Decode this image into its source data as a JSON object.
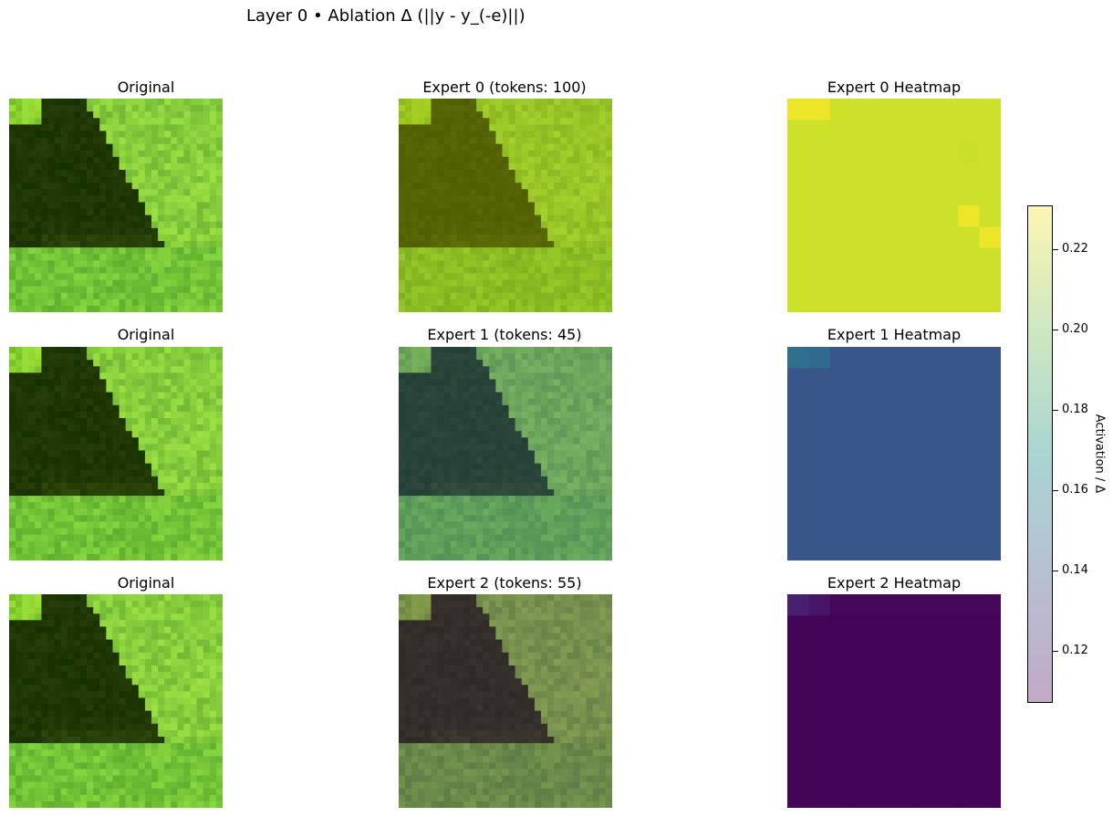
{
  "figure": {
    "title": "Layer 0 • Ablation Δ (||y - y_(-e)||)",
    "rows": [
      {
        "original_title": "Original",
        "expert_title": "Expert 0 (tokens: 100)",
        "heatmap_title": "Expert 0 Heatmap"
      },
      {
        "original_title": "Original",
        "expert_title": "Expert 1 (tokens: 45)",
        "heatmap_title": "Expert 1 Heatmap"
      },
      {
        "original_title": "Original",
        "expert_title": "Expert 2 (tokens: 55)",
        "heatmap_title": "Expert 2 Heatmap"
      }
    ],
    "tints": {
      "original": "#ffffff",
      "expert_0": "#b8b400",
      "expert_1": "#3a5b9a",
      "expert_2": "#5a1e6e"
    }
  },
  "chart_data": {
    "type": "heatmap",
    "title": "Layer 0 • Ablation Δ (||y - y_(-e)||)",
    "colorbar": {
      "label": "Activation / Δ",
      "ticks": [
        0.12,
        0.14,
        0.16,
        0.18,
        0.2,
        0.22
      ],
      "tick_labels": [
        "0.12",
        "0.14",
        "0.16",
        "0.18",
        "0.20",
        "0.22"
      ],
      "range": [
        0.107,
        0.231
      ],
      "colormap": "viridis (alpha 0.35)"
    },
    "heatmaps": [
      {
        "name": "Expert 0 Heatmap",
        "grid": [
          [
            0.228,
            0.228,
            0.222,
            0.222,
            0.222,
            0.222,
            0.222,
            0.222,
            0.222,
            0.222
          ],
          [
            0.222,
            0.222,
            0.222,
            0.222,
            0.222,
            0.222,
            0.222,
            0.222,
            0.222,
            0.222
          ],
          [
            0.222,
            0.222,
            0.222,
            0.222,
            0.222,
            0.222,
            0.222,
            0.222,
            0.221,
            0.222
          ],
          [
            0.222,
            0.222,
            0.222,
            0.222,
            0.222,
            0.222,
            0.222,
            0.222,
            0.222,
            0.222
          ],
          [
            0.222,
            0.222,
            0.222,
            0.222,
            0.222,
            0.222,
            0.222,
            0.222,
            0.222,
            0.222
          ],
          [
            0.222,
            0.222,
            0.222,
            0.222,
            0.222,
            0.222,
            0.222,
            0.222,
            0.228,
            0.222
          ],
          [
            0.222,
            0.222,
            0.222,
            0.222,
            0.222,
            0.222,
            0.222,
            0.222,
            0.222,
            0.228
          ],
          [
            0.222,
            0.222,
            0.222,
            0.222,
            0.222,
            0.222,
            0.222,
            0.222,
            0.222,
            0.222
          ],
          [
            0.222,
            0.222,
            0.222,
            0.222,
            0.222,
            0.222,
            0.222,
            0.222,
            0.222,
            0.222
          ],
          [
            0.222,
            0.222,
            0.222,
            0.222,
            0.222,
            0.222,
            0.222,
            0.222,
            0.222,
            0.222
          ]
        ]
      },
      {
        "name": "Expert 1 Heatmap",
        "grid": [
          [
            0.152,
            0.15,
            0.14,
            0.14,
            0.14,
            0.14,
            0.14,
            0.14,
            0.14,
            0.14
          ],
          [
            0.14,
            0.14,
            0.14,
            0.14,
            0.14,
            0.14,
            0.14,
            0.14,
            0.14,
            0.14
          ],
          [
            0.14,
            0.14,
            0.14,
            0.14,
            0.14,
            0.14,
            0.14,
            0.14,
            0.14,
            0.14
          ],
          [
            0.14,
            0.14,
            0.14,
            0.14,
            0.14,
            0.14,
            0.14,
            0.14,
            0.14,
            0.14
          ],
          [
            0.14,
            0.14,
            0.14,
            0.14,
            0.14,
            0.14,
            0.14,
            0.14,
            0.14,
            0.14
          ],
          [
            0.14,
            0.14,
            0.14,
            0.14,
            0.14,
            0.14,
            0.14,
            0.14,
            0.14,
            0.14
          ],
          [
            0.14,
            0.14,
            0.14,
            0.14,
            0.14,
            0.14,
            0.14,
            0.14,
            0.14,
            0.14
          ],
          [
            0.14,
            0.14,
            0.14,
            0.14,
            0.14,
            0.14,
            0.14,
            0.14,
            0.14,
            0.14
          ],
          [
            0.14,
            0.14,
            0.14,
            0.14,
            0.14,
            0.14,
            0.14,
            0.14,
            0.14,
            0.14
          ],
          [
            0.14,
            0.14,
            0.14,
            0.14,
            0.14,
            0.14,
            0.14,
            0.14,
            0.14,
            0.14
          ]
        ]
      },
      {
        "name": "Expert 2 Heatmap",
        "grid": [
          [
            0.118,
            0.114,
            0.109,
            0.109,
            0.109,
            0.109,
            0.109,
            0.109,
            0.109,
            0.109
          ],
          [
            0.108,
            0.108,
            0.108,
            0.108,
            0.108,
            0.108,
            0.108,
            0.108,
            0.108,
            0.108
          ],
          [
            0.108,
            0.108,
            0.108,
            0.108,
            0.108,
            0.108,
            0.108,
            0.108,
            0.108,
            0.108
          ],
          [
            0.108,
            0.108,
            0.108,
            0.108,
            0.108,
            0.108,
            0.108,
            0.108,
            0.108,
            0.108
          ],
          [
            0.108,
            0.108,
            0.108,
            0.108,
            0.108,
            0.108,
            0.108,
            0.108,
            0.108,
            0.108
          ],
          [
            0.108,
            0.108,
            0.108,
            0.108,
            0.108,
            0.108,
            0.108,
            0.108,
            0.108,
            0.108
          ],
          [
            0.108,
            0.108,
            0.108,
            0.108,
            0.108,
            0.108,
            0.108,
            0.108,
            0.108,
            0.108
          ],
          [
            0.108,
            0.108,
            0.108,
            0.108,
            0.108,
            0.108,
            0.108,
            0.108,
            0.108,
            0.108
          ],
          [
            0.108,
            0.108,
            0.108,
            0.108,
            0.108,
            0.108,
            0.108,
            0.108,
            0.108,
            0.108
          ],
          [
            0.108,
            0.108,
            0.108,
            0.108,
            0.108,
            0.108,
            0.108,
            0.108,
            0.108,
            0.108
          ]
        ]
      }
    ]
  }
}
